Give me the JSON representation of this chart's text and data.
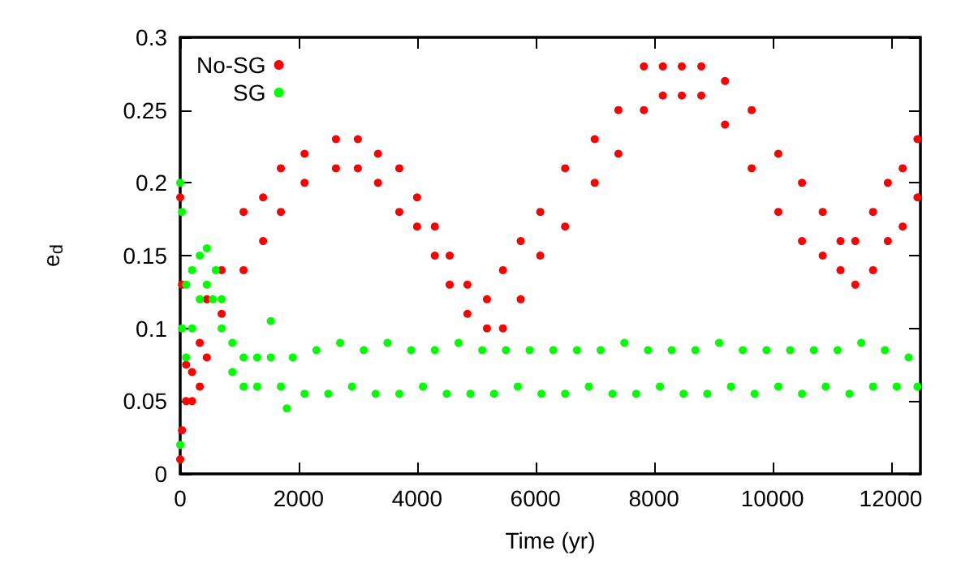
{
  "chart_data": {
    "type": "scatter",
    "xlabel": "Time (yr)",
    "ylabel": "e$_{d}$",
    "xlim": [
      0,
      12500
    ],
    "xticks": [
      0,
      2000,
      4000,
      6000,
      8000,
      10000,
      12000
    ],
    "ylim": [
      0,
      0.3
    ],
    "yticks": [
      0,
      0.05,
      0.1,
      0.15,
      0.2,
      0.25,
      0.3
    ],
    "grid": false,
    "legend": "top left",
    "marker": "circle",
    "series": [
      {
        "name": "No-SG",
        "color": "#ff0000",
        "x": [
          0,
          0,
          30,
          30,
          100,
          100,
          200,
          200,
          330,
          330,
          450,
          450,
          700,
          700,
          1070,
          1070,
          1400,
          1400,
          1700,
          1700,
          2100,
          2100,
          2630,
          2630,
          3000,
          3000,
          3340,
          3340,
          3700,
          3700,
          4000,
          4000,
          4300,
          4300,
          4550,
          4550,
          4850,
          4850,
          5180,
          5180,
          5450,
          5450,
          5750,
          5750,
          6080,
          6080,
          6500,
          6500,
          7000,
          7000,
          7400,
          7400,
          7830,
          7830,
          8150,
          8150,
          8470,
          8470,
          8800,
          8800,
          9200,
          9200,
          9650,
          9650,
          10100,
          10100,
          10500,
          10500,
          10850,
          10850,
          11150,
          11150,
          11400,
          11400,
          11700,
          11700,
          11950,
          11950,
          12200,
          12200,
          12450,
          12450
        ],
        "values": [
          0.01,
          0.19,
          0.03,
          0.13,
          0.05,
          0.075,
          0.05,
          0.07,
          0.06,
          0.09,
          0.08,
          0.12,
          0.11,
          0.14,
          0.14,
          0.18,
          0.16,
          0.19,
          0.18,
          0.21,
          0.2,
          0.22,
          0.21,
          0.23,
          0.21,
          0.23,
          0.2,
          0.22,
          0.18,
          0.21,
          0.17,
          0.19,
          0.15,
          0.17,
          0.13,
          0.15,
          0.11,
          0.13,
          0.1,
          0.12,
          0.1,
          0.14,
          0.12,
          0.16,
          0.15,
          0.18,
          0.17,
          0.21,
          0.2,
          0.23,
          0.22,
          0.25,
          0.25,
          0.28,
          0.26,
          0.28,
          0.26,
          0.28,
          0.26,
          0.28,
          0.24,
          0.27,
          0.21,
          0.25,
          0.18,
          0.22,
          0.16,
          0.2,
          0.15,
          0.18,
          0.14,
          0.16,
          0.13,
          0.16,
          0.14,
          0.18,
          0.16,
          0.2,
          0.17,
          0.21,
          0.19,
          0.23
        ]
      },
      {
        "name": "SG",
        "color": "#00ff00",
        "x": [
          0,
          0,
          30,
          30,
          100,
          100,
          200,
          200,
          330,
          330,
          450,
          450,
          550,
          600,
          700,
          700,
          880,
          880,
          1070,
          1070,
          1300,
          1300,
          1530,
          1530,
          1700,
          1800,
          1900,
          2100,
          2300,
          2500,
          2700,
          2900,
          3100,
          3300,
          3500,
          3700,
          3900,
          4100,
          4300,
          4500,
          4700,
          4900,
          5100,
          5300,
          5500,
          5700,
          5900,
          6100,
          6300,
          6500,
          6700,
          6900,
          7100,
          7300,
          7500,
          7700,
          7900,
          8100,
          8300,
          8500,
          8700,
          8900,
          9100,
          9300,
          9500,
          9700,
          9900,
          10100,
          10300,
          10500,
          10700,
          10900,
          11100,
          11300,
          11500,
          11700,
          11900,
          12100,
          12300,
          12450
        ],
        "values": [
          0.02,
          0.2,
          0.1,
          0.18,
          0.08,
          0.13,
          0.1,
          0.14,
          0.12,
          0.15,
          0.13,
          0.155,
          0.12,
          0.14,
          0.1,
          0.12,
          0.07,
          0.09,
          0.06,
          0.08,
          0.06,
          0.08,
          0.08,
          0.105,
          0.06,
          0.045,
          0.08,
          0.055,
          0.085,
          0.055,
          0.09,
          0.06,
          0.085,
          0.055,
          0.09,
          0.055,
          0.085,
          0.06,
          0.085,
          0.055,
          0.09,
          0.055,
          0.085,
          0.055,
          0.085,
          0.06,
          0.085,
          0.055,
          0.085,
          0.055,
          0.085,
          0.06,
          0.085,
          0.055,
          0.09,
          0.055,
          0.085,
          0.06,
          0.085,
          0.055,
          0.085,
          0.055,
          0.09,
          0.06,
          0.085,
          0.055,
          0.085,
          0.06,
          0.085,
          0.055,
          0.085,
          0.06,
          0.085,
          0.055,
          0.09,
          0.06,
          0.085,
          0.06,
          0.08,
          0.06
        ]
      }
    ]
  }
}
